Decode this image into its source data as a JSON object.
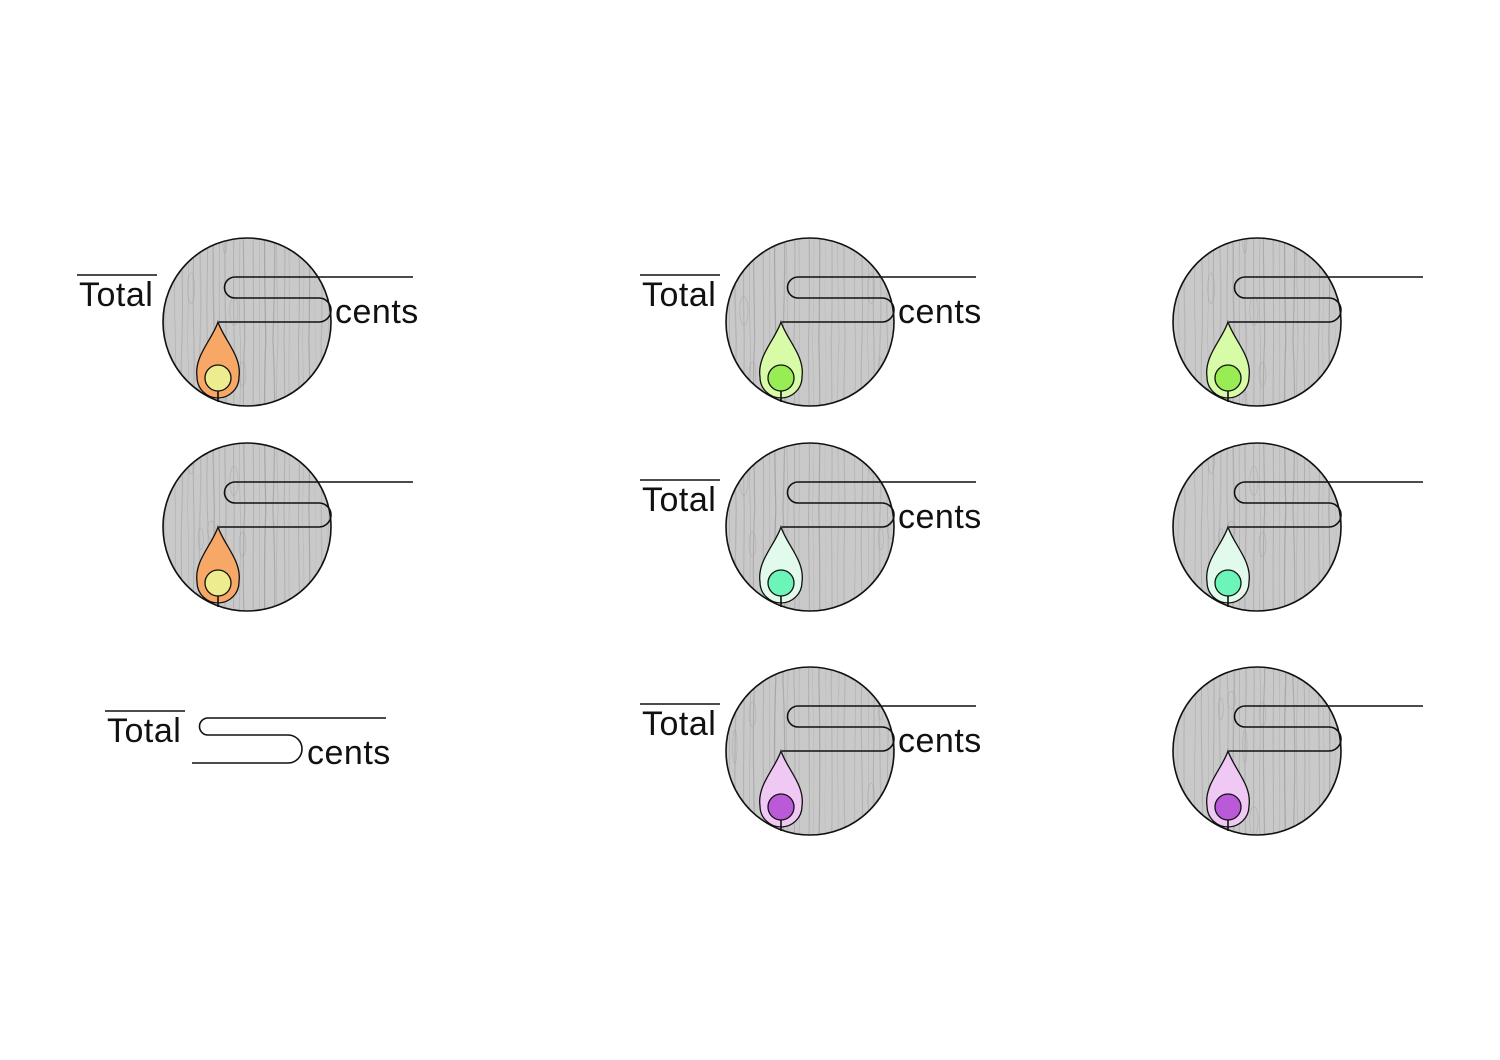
{
  "wordmark": {
    "word1": "Total",
    "word2": "cents"
  },
  "colors": {
    "ink": "#111111",
    "wood_base": "#c9c9c9",
    "wood_grain": "#9a9a9a"
  },
  "palettes": [
    {
      "name": "orange",
      "drop": "#f7a766",
      "dot": "#eded8f"
    },
    {
      "name": "lime",
      "drop": "#d8fba8",
      "dot": "#98ec54"
    },
    {
      "name": "mint",
      "drop": "#e2faec",
      "dot": "#6cf5b8"
    },
    {
      "name": "violet",
      "drop": "#efc9f4",
      "dot": "#bb5ad9"
    }
  ],
  "variants": [
    {
      "id": "orange-full",
      "palette": 0,
      "show_wordmark": true,
      "emblem": true
    },
    {
      "id": "orange-emblem",
      "palette": 0,
      "show_wordmark": false,
      "emblem": true
    },
    {
      "id": "wordmark-only",
      "palette": null,
      "show_wordmark": true,
      "emblem": false
    },
    {
      "id": "lime-full",
      "palette": 1,
      "show_wordmark": true,
      "emblem": true
    },
    {
      "id": "mint-full",
      "palette": 2,
      "show_wordmark": true,
      "emblem": true
    },
    {
      "id": "violet-full",
      "palette": 3,
      "show_wordmark": true,
      "emblem": true
    },
    {
      "id": "lime-emblem",
      "palette": 1,
      "show_wordmark": false,
      "emblem": true
    },
    {
      "id": "mint-emblem",
      "palette": 2,
      "show_wordmark": false,
      "emblem": true
    },
    {
      "id": "violet-emblem",
      "palette": 3,
      "show_wordmark": false,
      "emblem": true
    }
  ]
}
